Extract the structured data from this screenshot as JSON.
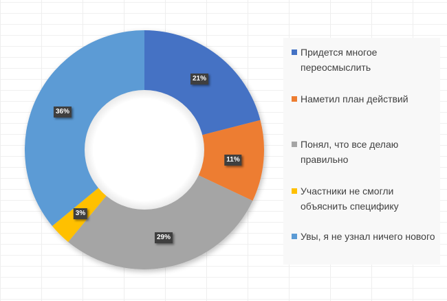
{
  "chart_data": {
    "type": "pie",
    "variant": "donut",
    "title": "",
    "categories": [
      "Придется многое переосмыслить",
      "Наметил план действий",
      "Понял, что все делаю правильно",
      "Участники не смогли объяснить специфику",
      "Увы, я не узнал ничего нового"
    ],
    "values": [
      21,
      11,
      29,
      3,
      36
    ],
    "labels": [
      "21%",
      "11%",
      "29%",
      "3%",
      "36%"
    ],
    "colors": [
      "#4472C4",
      "#ED7D31",
      "#A5A5A5",
      "#FFC000",
      "#5B9BD5"
    ],
    "legend_position": "right",
    "start_angle_deg": 0,
    "direction": "clockwise"
  },
  "legend": {
    "items": [
      {
        "line1": "Придется многое",
        "line2": "переосмыслить",
        "color": "#4472C4"
      },
      {
        "line1": "Наметил план действий",
        "line2": "",
        "color": "#ED7D31"
      },
      {
        "line1": "Понял, что все делаю",
        "line2": "правильно",
        "color": "#A5A5A5"
      },
      {
        "line1": "Участники не смогли",
        "line2": "объяснить специфику",
        "color": "#FFC000"
      },
      {
        "line1": "Увы, я не узнал ничего нового",
        "line2": "",
        "color": "#5B9BD5"
      }
    ]
  },
  "data_labels": [
    "21%",
    "11%",
    "29%",
    "3%",
    "36%"
  ]
}
